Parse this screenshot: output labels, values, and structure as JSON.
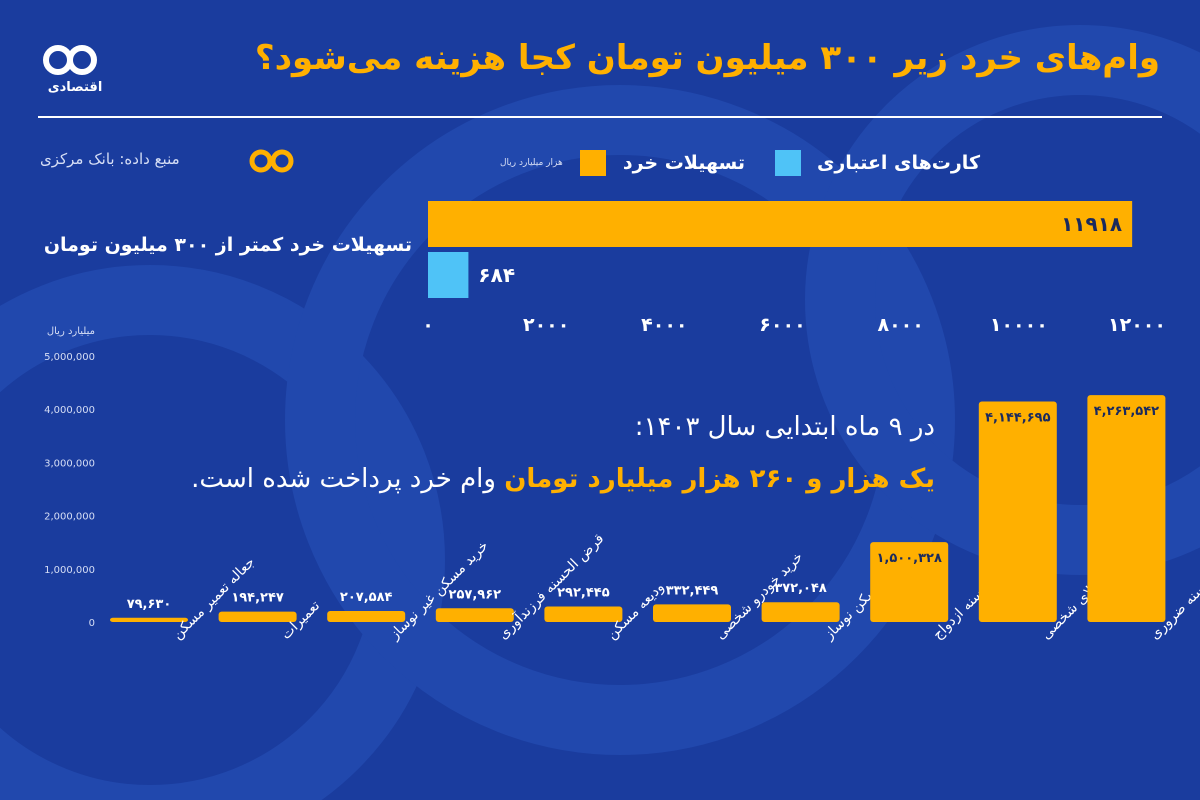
{
  "header": {
    "title": "وام‌های خرد زیر ۳۰۰ میلیون تومان کجا هزینه می‌شود؟",
    "logo_text": "اقتصادی",
    "source": "منبع داده: بانک مرکزی"
  },
  "callout": {
    "line1": "در ۹ ماه ابتدایی سال ۱۴۰۳:",
    "highlight": "یک هزار و ۲۶۰ هزار میلیارد تومان",
    "rest": " وام خرد پرداخت شده است."
  },
  "colors": {
    "background": "#1a3c9e",
    "orange": "#ffb000",
    "blue": "#4fc3f7",
    "white": "#ffffff"
  },
  "chart_data": [
    {
      "type": "bar",
      "orientation": "horizontal",
      "unit": "هزار میلیارد ریال",
      "categories": [
        "تسهیلات خرد کمتر از ۳۰۰ میلیون تومان"
      ],
      "series": [
        {
          "name": "تسهیلات خرد",
          "color": "#ffb000",
          "values": [
            11918
          ],
          "labels": [
            "۱۱۹۱۸"
          ]
        },
        {
          "name": "کارت‌های اعتباری",
          "color": "#4fc3f7",
          "values": [
            684
          ],
          "labels": [
            "۶۸۴"
          ]
        }
      ],
      "xlim": [
        0,
        12000
      ],
      "xticks": [
        0,
        2000,
        4000,
        6000,
        8000,
        10000,
        12000
      ],
      "xtick_labels": [
        "۰",
        "۲۰۰۰",
        "۴۰۰۰",
        "۶۰۰۰",
        "۸۰۰۰",
        "۱۰۰۰۰",
        "۱۲۰۰۰"
      ],
      "legend": "top-right"
    },
    {
      "type": "bar",
      "orientation": "vertical",
      "ylabel": "میلیارد ریال",
      "ylim": [
        0,
        5000000
      ],
      "yticks": [
        0,
        1000000,
        2000000,
        3000000,
        4000000,
        5000000
      ],
      "ytick_labels": [
        "0",
        "1,000,000",
        "2,000,000",
        "3,000,000",
        "4,000,000",
        "5,000,000"
      ],
      "categories": [
        "جعاله تعمیر مسکن",
        "تعمیرات",
        "خرید مسکن غیر نوساز",
        "قرض الحسنه فرزندآوری",
        "ودیعه مسکن",
        "خرید خودرو شخصی",
        "خرید مسکن نوساز",
        "قرض الحسنه ازدواج",
        "خرید کالای شخصی",
        "قرض الحسنه ضروری"
      ],
      "values": [
        79630,
        194247,
        207584,
        257962,
        292445,
        332449,
        372048,
        1500328,
        4144695,
        4263542
      ],
      "value_labels": [
        "۷۹,۶۳۰",
        "۱۹۴,۲۴۷",
        "۲۰۷,۵۸۴",
        "۲۵۷,۹۶۲",
        "۲۹۲,۴۴۵",
        "۳۳۲,۴۴۹",
        "۳۷۲,۰۴۸",
        "۱,۵۰۰,۳۲۸",
        "۴,۱۴۴,۶۹۵",
        "۴,۲۶۳,۵۴۲"
      ],
      "color": "#ffb000"
    }
  ]
}
